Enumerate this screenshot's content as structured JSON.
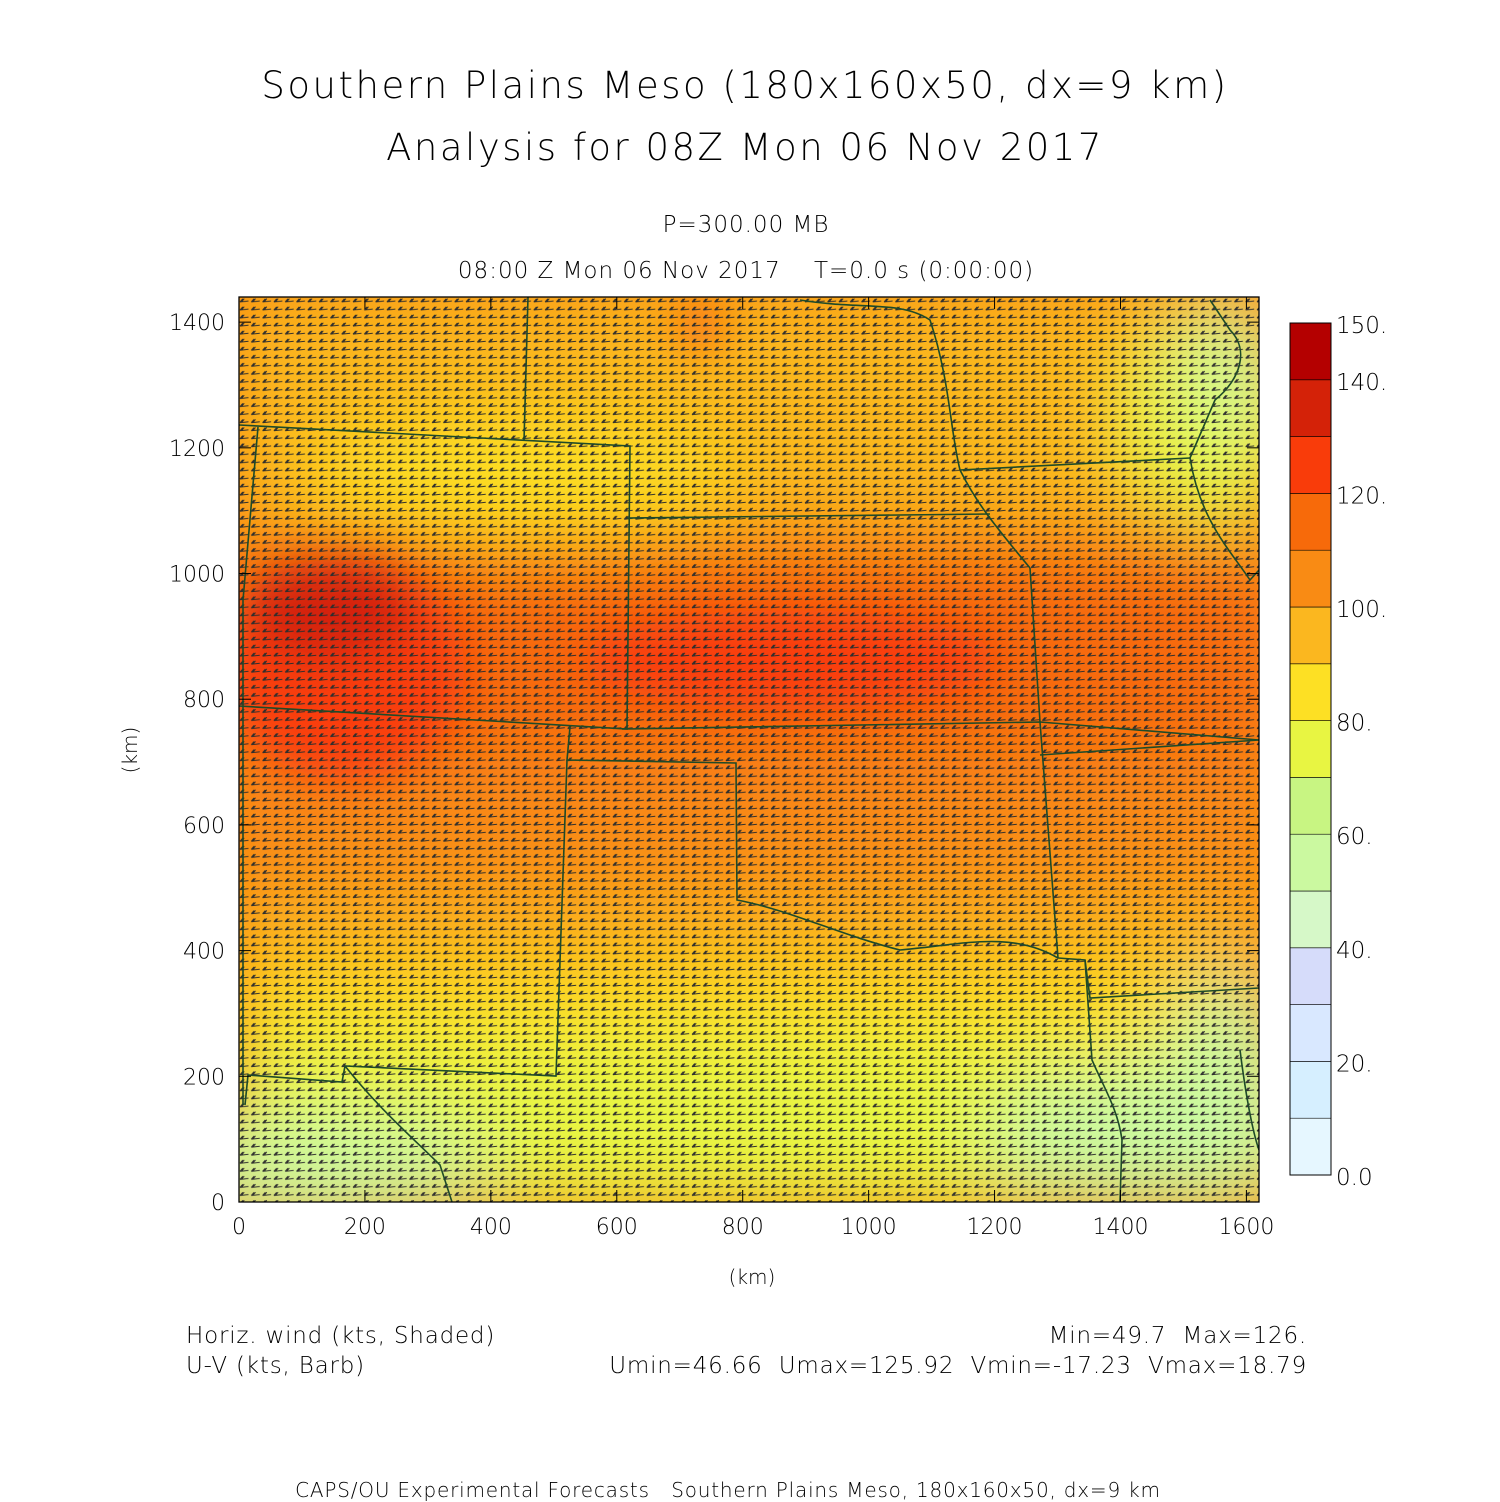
{
  "header": {
    "title_line1": "Southern Plains Meso (180x160x50, dx=9 km)",
    "title_line2": "Analysis for 08Z Mon 06 Nov 2017",
    "level": "P=300.00 MB",
    "valid_time": "08:00 Z Mon 06 Nov 2017    T=0.0 s (0:00:00)"
  },
  "chart_data": {
    "type": "heatmap",
    "x_axis": {
      "label": "(km)",
      "range": [
        0,
        1620
      ],
      "ticks": [
        0,
        200,
        400,
        600,
        800,
        1000,
        1200,
        1400,
        1600
      ]
    },
    "y_axis": {
      "label": "(km)",
      "range": [
        0,
        1440
      ],
      "ticks": [
        0,
        200,
        400,
        600,
        800,
        1000,
        1200,
        1400
      ]
    },
    "field": "Horiz. wind (kts, Shaded)",
    "overlay": "U-V (kts, Barb)",
    "wind_maxima": [
      {
        "x": 120,
        "y": 920,
        "speed": 126
      },
      {
        "x": 880,
        "y": 860,
        "speed": 120
      }
    ],
    "colorbar": {
      "labels": [
        "150.",
        "140.",
        "120.",
        "100.",
        "80.",
        "60.",
        "40.",
        "20.",
        "0.0"
      ],
      "levels": [
        0,
        10,
        20,
        30,
        40,
        50,
        60,
        70,
        80,
        90,
        100,
        110,
        120,
        130,
        140,
        150
      ],
      "colors": [
        "#e6f7ff",
        "#d6efff",
        "#d9e8ff",
        "#d6dcfa",
        "#d6f8c8",
        "#cbf9a0",
        "#c8f582",
        "#e8f542",
        "#fde024",
        "#fbb71f",
        "#f98b14",
        "#f76a0a",
        "#f93c0a",
        "#d42208",
        "#b40000"
      ]
    }
  },
  "footer": {
    "left_line1": "Horiz. wind (kts, Shaded)",
    "left_line2": "U-V (kts, Barb)",
    "right_line1": "Min=49.7  Max=126.",
    "right_line2": "Umin=46.66  Umax=125.92  Vmin=-17.23  Vmax=18.79",
    "credit": "CAPS/OU Experimental Forecasts   Southern Plains Meso, 180x160x50, dx=9 km"
  }
}
